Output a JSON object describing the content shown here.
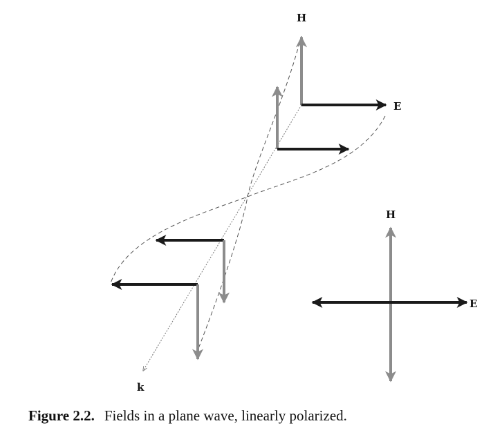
{
  "diagram": {
    "wave_labels": {
      "h": "H",
      "e": "E",
      "k": "k"
    },
    "legend_labels": {
      "h": "H",
      "e": "E"
    },
    "colors": {
      "h_field": "#8c8c8c",
      "e_field": "#1a1a1a",
      "envelope": "#555555"
    }
  },
  "caption": {
    "number": "Figure 2.2.",
    "text": "Fields in a plane wave, linearly polarized."
  }
}
